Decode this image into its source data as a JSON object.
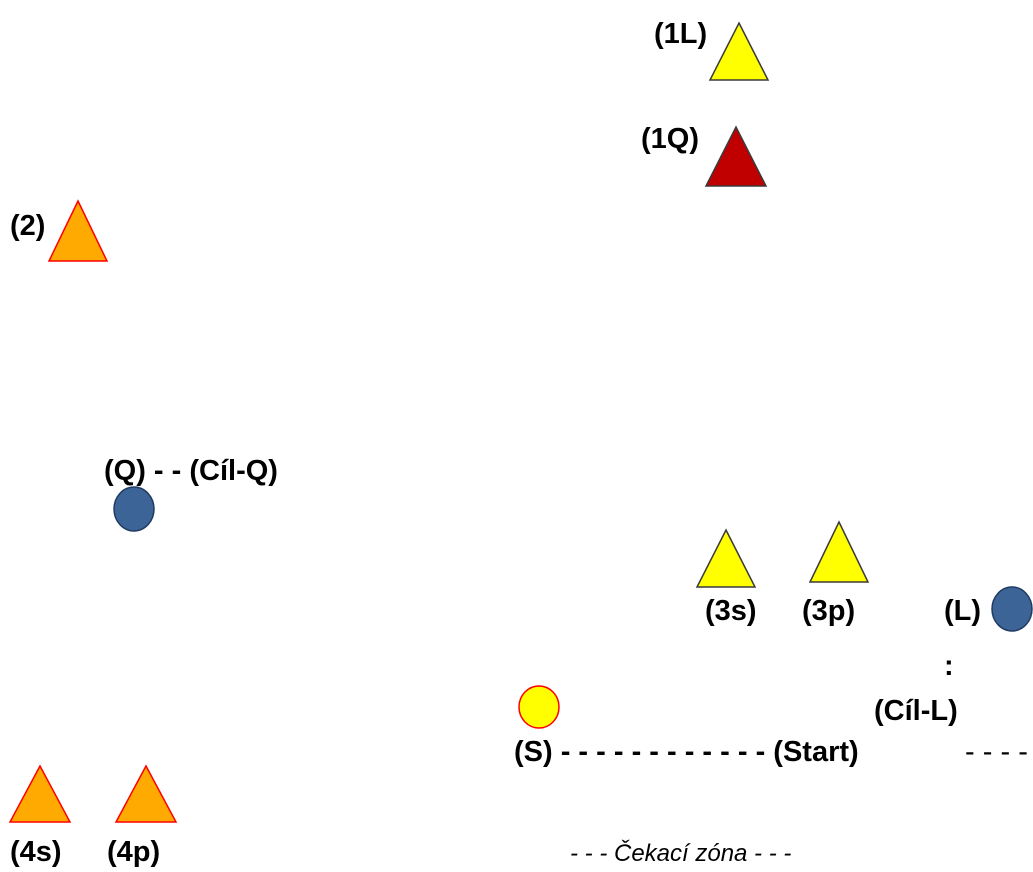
{
  "colors": {
    "yellow": "#ffff00",
    "orange": "#ffaa00",
    "red_orange_stroke": "#ff0000",
    "dark_red": "#c00000",
    "blue": "#3c6496",
    "blue_stroke": "#1f3b63",
    "dark_stroke": "#3a3a3a",
    "text": "#000000"
  },
  "cones": [
    {
      "id": "1L",
      "color": "yellow",
      "icon": "triangle-cone"
    },
    {
      "id": "1Q",
      "color": "dark_red",
      "icon": "triangle-cone"
    },
    {
      "id": "2",
      "color": "orange",
      "icon": "triangle-cone"
    },
    {
      "id": "3s",
      "color": "yellow",
      "icon": "triangle-cone"
    },
    {
      "id": "3p",
      "color": "yellow",
      "icon": "triangle-cone"
    },
    {
      "id": "4s",
      "color": "orange",
      "icon": "triangle-cone"
    },
    {
      "id": "4p",
      "color": "orange",
      "icon": "triangle-cone"
    }
  ],
  "markers": [
    {
      "id": "Q",
      "color": "blue",
      "icon": "circle-marker"
    },
    {
      "id": "L",
      "color": "blue",
      "icon": "circle-marker"
    },
    {
      "id": "S",
      "color": "yellow",
      "icon": "circle-marker"
    }
  ],
  "labels": {
    "l1L": "(1L)",
    "l1Q": "(1Q)",
    "l2": "(2)",
    "q_line": "(Q) - - (Cíl-Q)",
    "l3s": "(3s)",
    "l3p": "(3p)",
    "lL": "(L)",
    "colon": ":",
    "cil_l": "(Cíl-L)",
    "start_line": "(S) - - - - - - - - - - - - (Start)",
    "start_tail": " - - - -",
    "l4s": "(4s)",
    "l4p": "(4p)",
    "waiting_zone": "- - - Čekací zóna - - -"
  }
}
